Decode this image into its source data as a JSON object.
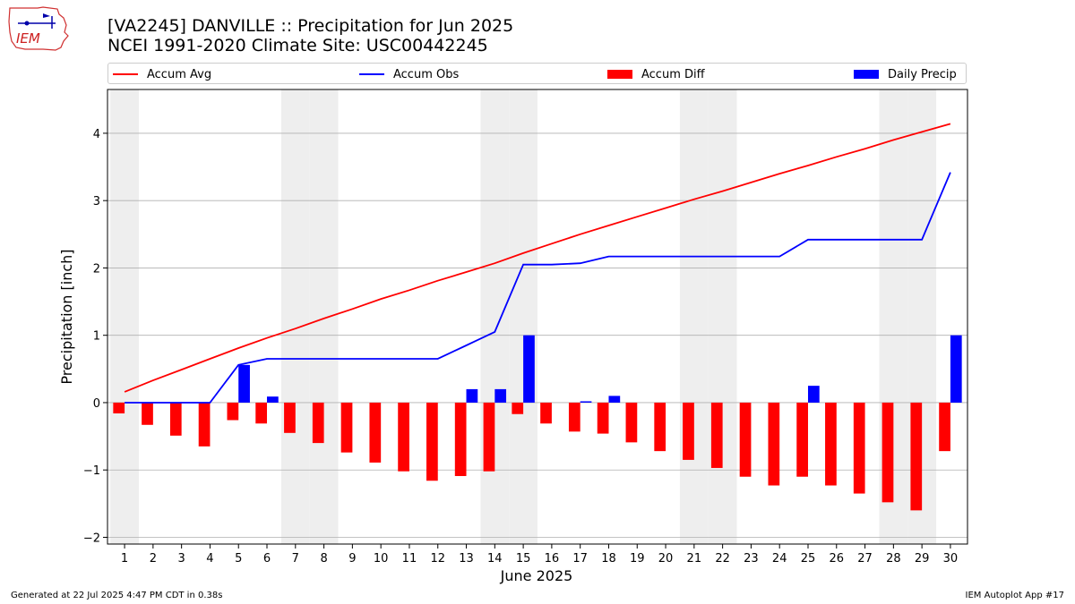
{
  "header": {
    "title_line1": "[VA2245] DANVILLE :: Precipitation for Jun 2025",
    "title_line2": "NCEI 1991-2020 Climate Site: USC00442245",
    "logo_text": "IEM"
  },
  "footer": {
    "generated": "Generated at 22 Jul 2025 4:47 PM CDT in 0.38s",
    "app": "IEM Autoplot App #17"
  },
  "colors": {
    "accum_avg": "#ff0000",
    "accum_obs": "#0000ff",
    "accum_diff": "#ff0000",
    "daily_precip": "#0000ff",
    "weekend_shade": "#eeeeee",
    "grid": "#b0b0b0"
  },
  "chart_data": {
    "type": "bar",
    "xlabel": "June 2025",
    "ylabel": "Precipitation [inch]",
    "ylim": [
      -2.1,
      4.65
    ],
    "yticks": [
      -2,
      -1,
      0,
      1,
      2,
      3,
      4
    ],
    "ytick_labels": [
      "−2",
      "−1",
      "0",
      "1",
      "2",
      "3",
      "4"
    ],
    "grid": "horizontal",
    "legend_placement": "top",
    "categories": [
      "1",
      "2",
      "3",
      "4",
      "5",
      "6",
      "7",
      "8",
      "9",
      "10",
      "11",
      "12",
      "13",
      "14",
      "15",
      "16",
      "17",
      "18",
      "19",
      "20",
      "21",
      "22",
      "23",
      "24",
      "25",
      "26",
      "27",
      "28",
      "29",
      "30"
    ],
    "weekend_days": [
      1,
      7,
      8,
      14,
      15,
      21,
      22,
      28,
      29
    ],
    "series": [
      {
        "name": "Accum Avg",
        "kind": "line",
        "values": [
          0.16,
          0.33,
          0.49,
          0.65,
          0.81,
          0.96,
          1.1,
          1.25,
          1.39,
          1.54,
          1.67,
          1.81,
          1.94,
          2.07,
          2.22,
          2.36,
          2.5,
          2.63,
          2.76,
          2.89,
          3.02,
          3.14,
          3.27,
          3.4,
          3.52,
          3.65,
          3.77,
          3.9,
          4.02,
          4.14
        ]
      },
      {
        "name": "Accum Obs",
        "kind": "line",
        "values": [
          0.0,
          0.0,
          0.0,
          0.0,
          0.56,
          0.65,
          0.65,
          0.65,
          0.65,
          0.65,
          0.65,
          0.65,
          0.85,
          1.05,
          2.05,
          2.05,
          2.07,
          2.17,
          2.17,
          2.17,
          2.17,
          2.17,
          2.17,
          2.17,
          2.42,
          2.42,
          2.42,
          2.42,
          2.42,
          3.42
        ]
      },
      {
        "name": "Accum Diff",
        "kind": "bar",
        "values": [
          -0.16,
          -0.33,
          -0.49,
          -0.65,
          -0.26,
          -0.31,
          -0.45,
          -0.6,
          -0.74,
          -0.89,
          -1.02,
          -1.16,
          -1.09,
          -1.02,
          -0.17,
          -0.31,
          -0.43,
          -0.46,
          -0.59,
          -0.72,
          -0.85,
          -0.97,
          -1.1,
          -1.23,
          -1.1,
          -1.23,
          -1.35,
          -1.48,
          -1.6,
          -0.72
        ]
      },
      {
        "name": "Daily Precip",
        "kind": "bar",
        "values": [
          0.0,
          0.0,
          0.0,
          0.0,
          0.56,
          0.09,
          0.0,
          0.0,
          0.0,
          0.0,
          0.0,
          0.0,
          0.2,
          0.2,
          1.0,
          0.0,
          0.02,
          0.1,
          0.0,
          0.0,
          0.0,
          0.0,
          0.0,
          0.0,
          0.25,
          0.0,
          0.0,
          0.0,
          0.0,
          1.0
        ]
      }
    ]
  }
}
